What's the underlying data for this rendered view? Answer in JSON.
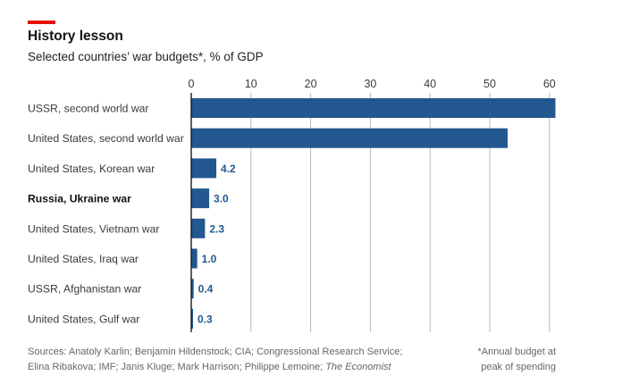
{
  "header": {
    "title": "History lesson",
    "subtitle": "Selected countries’ war budgets*, % of GDP"
  },
  "colors": {
    "accent": "#e3120b",
    "bar": "#22588f",
    "bar_label": "#22588f",
    "grid": "#b7b7b7",
    "text": "#3a3a3a"
  },
  "chart_data": {
    "type": "bar",
    "orientation": "horizontal",
    "title": "History lesson",
    "subtitle": "Selected countries’ war budgets*, % of GDP",
    "xlim": [
      0,
      60
    ],
    "ticks": [
      0,
      10,
      20,
      30,
      40,
      50,
      60
    ],
    "tick_labels": [
      "0",
      "10",
      "20",
      "30",
      "40",
      "50",
      "60"
    ],
    "grid": true,
    "categories": [
      "USSR, second world war",
      "United States, second world war",
      "United States, Korean war",
      "Russia, Ukraine war",
      "United States, Vietnam war",
      "United States, Iraq war",
      "USSR, Afghanistan war",
      "United States, Gulf war"
    ],
    "values": [
      61,
      53,
      4.2,
      3.0,
      2.3,
      1.0,
      0.4,
      0.3
    ],
    "data_labels": [
      "",
      "",
      "4.2",
      "3.0",
      "2.3",
      "1.0",
      "0.4",
      "0.3"
    ],
    "highlighted_category": "Russia, Ukraine war"
  },
  "footer": {
    "sources_line1": "Sources: Anatoly Karlin; Benjamin Hildenstock; CIA; Congressional Research Service;",
    "sources_line2": "Elina Ribakova; IMF; Janis Kluge; Mark Harrison; Philippe Lemoine; ",
    "sources_publication": "The Economist",
    "note_line1": "*Annual budget at",
    "note_line2": "peak of spending"
  }
}
